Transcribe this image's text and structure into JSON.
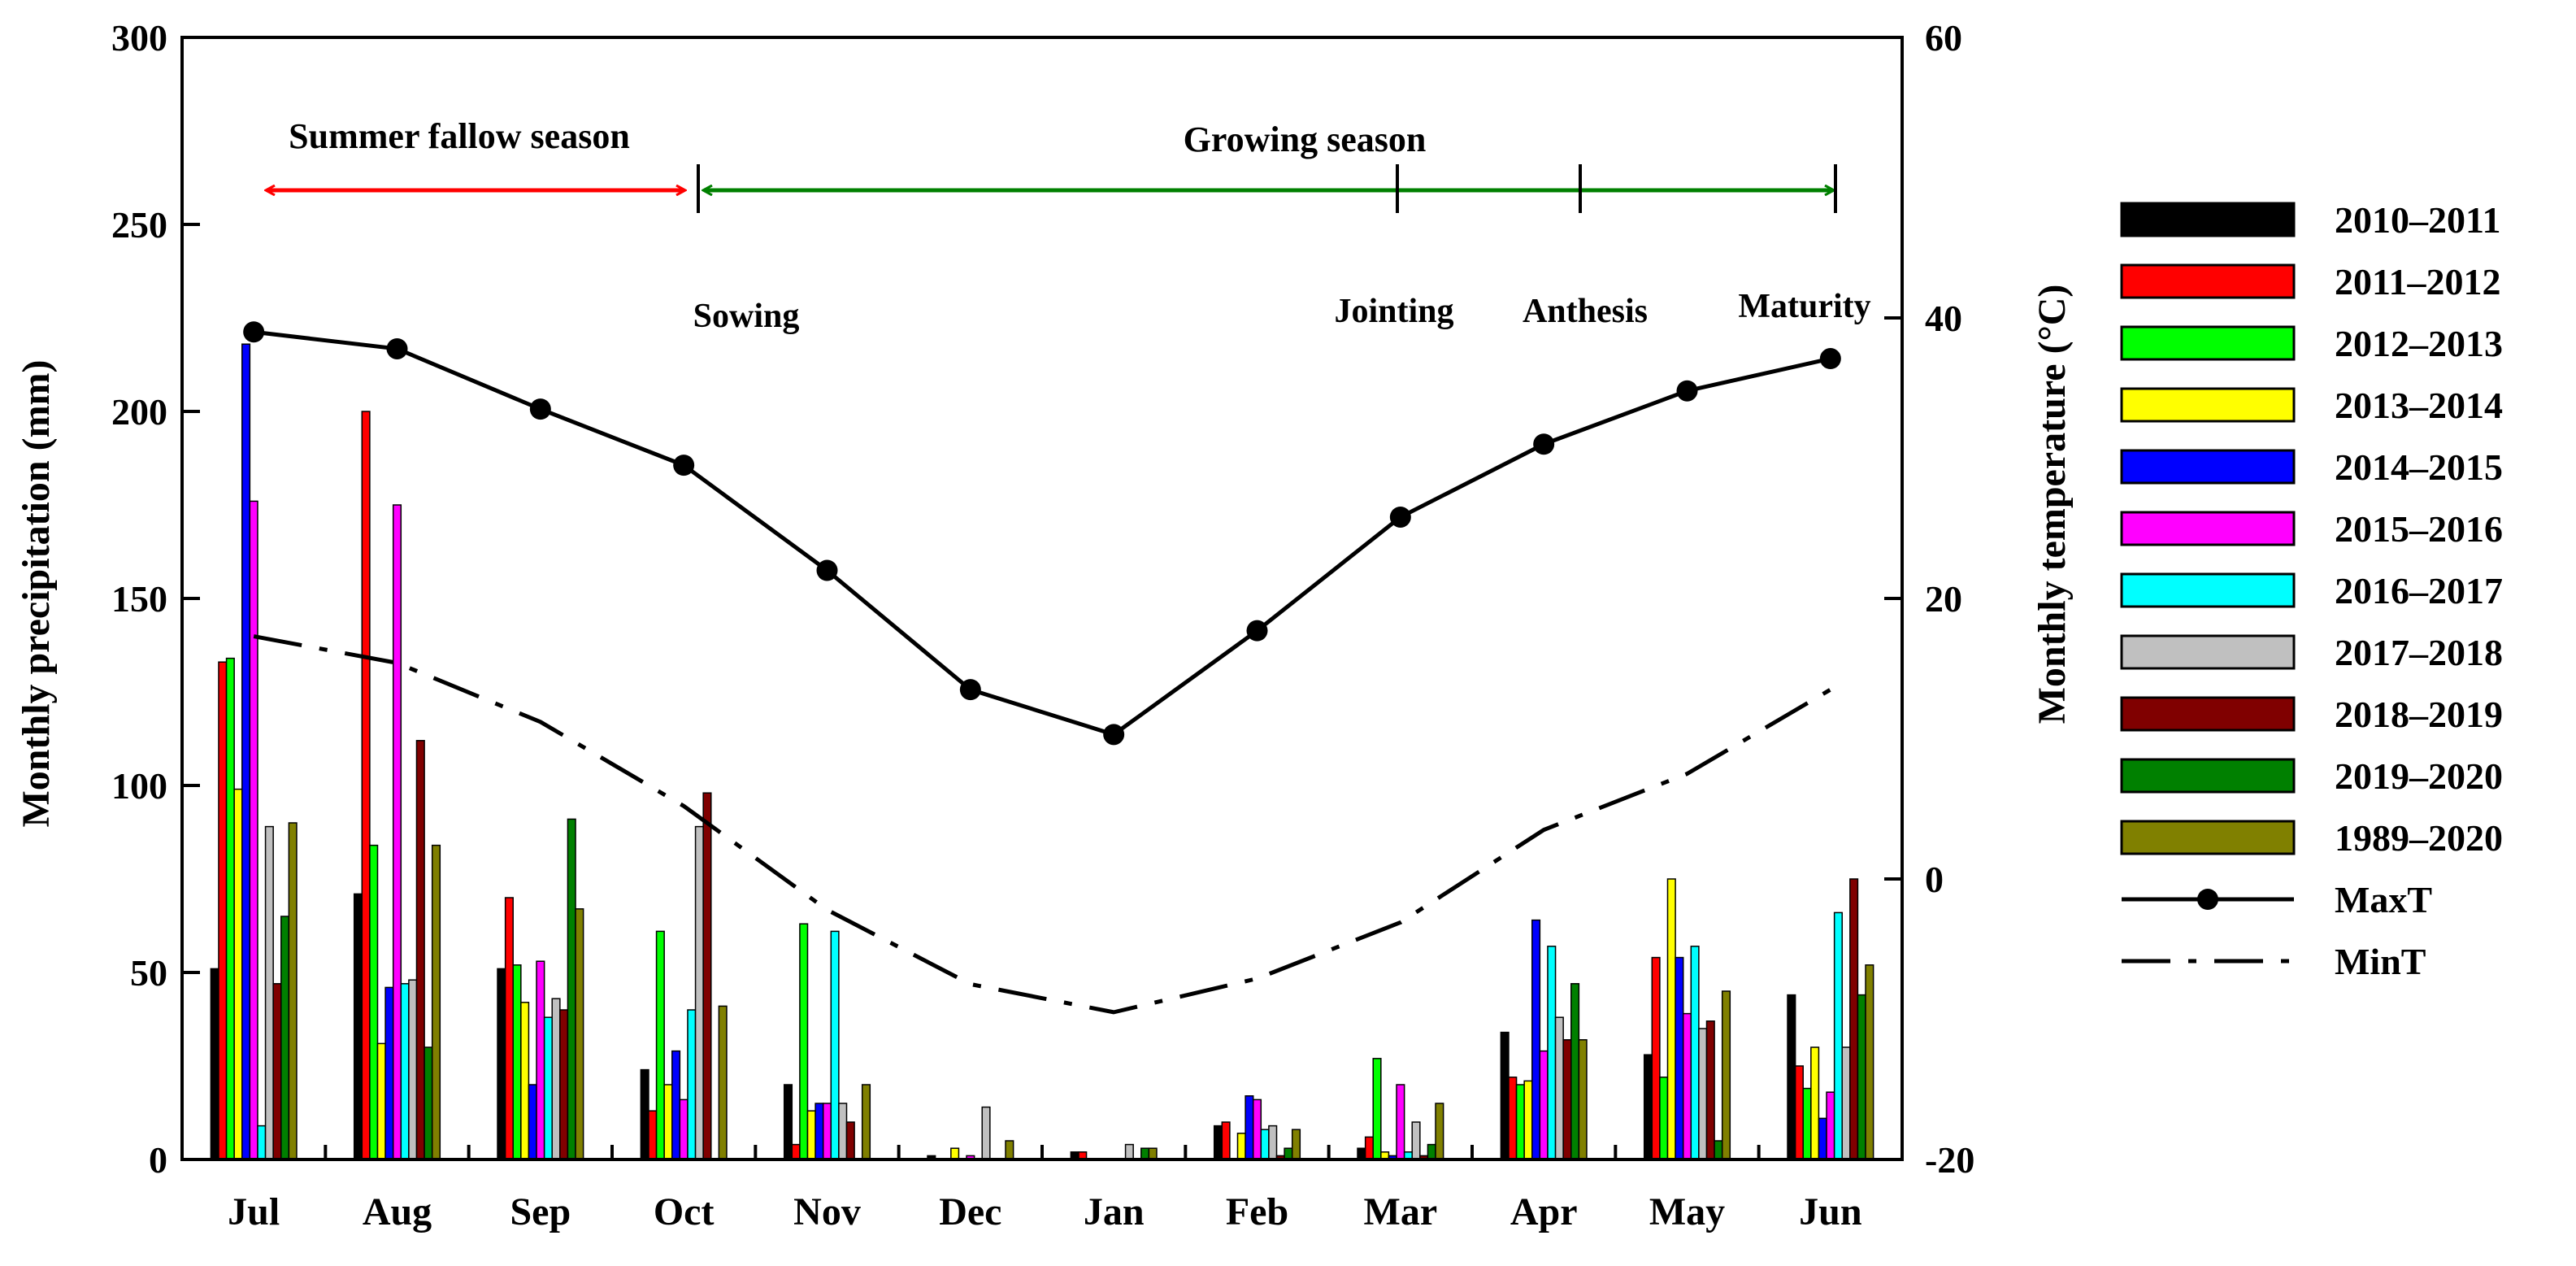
{
  "chart_data": {
    "type": "bar",
    "title": "",
    "categories": [
      "Jul",
      "Aug",
      "Sep",
      "Oct",
      "Nov",
      "Dec",
      "Jan",
      "Feb",
      "Mar",
      "Apr",
      "May",
      "Jun"
    ],
    "ylabel": "Monthly precipitation (mm)",
    "ylim": [
      0,
      300
    ],
    "yticks": [
      0,
      50,
      100,
      150,
      200,
      250,
      300
    ],
    "y2label": "Monthly temperature (°C)",
    "y2lim": [
      -20,
      60
    ],
    "y2ticks": [
      -20,
      0,
      20,
      40,
      60
    ],
    "series": [
      {
        "name": "2010–2011",
        "color": "#000000",
        "values": [
          51,
          71,
          51,
          24,
          20,
          1,
          2,
          9,
          3,
          34,
          28,
          44
        ]
      },
      {
        "name": "2011–2012",
        "color": "#ff0000",
        "values": [
          133,
          200,
          70,
          13,
          4,
          0,
          2,
          10,
          6,
          22,
          54,
          25
        ]
      },
      {
        "name": "2012–2013",
        "color": "#00ff00",
        "values": [
          134,
          84,
          52,
          61,
          63,
          0,
          0,
          0,
          27,
          20,
          22,
          19
        ]
      },
      {
        "name": "2013–2014",
        "color": "#ffff00",
        "values": [
          99,
          31,
          42,
          20,
          13,
          3,
          0,
          7,
          2,
          21,
          75,
          30
        ]
      },
      {
        "name": "2014–2015",
        "color": "#0000ff",
        "values": [
          218,
          46,
          20,
          29,
          15,
          0,
          0,
          17,
          1,
          64,
          54,
          11
        ]
      },
      {
        "name": "2015–2016",
        "color": "#ff00ff",
        "values": [
          176,
          175,
          53,
          16,
          15,
          1,
          0,
          16,
          20,
          29,
          39,
          18
        ]
      },
      {
        "name": "2016–2017",
        "color": "#00ffff",
        "values": [
          9,
          47,
          38,
          40,
          61,
          0,
          0,
          8,
          2,
          57,
          57,
          66
        ]
      },
      {
        "name": "2017–2018",
        "color": "#c0c0c0",
        "values": [
          89,
          48,
          43,
          89,
          15,
          14,
          4,
          9,
          10,
          38,
          35,
          30
        ]
      },
      {
        "name": "2018–2019",
        "color": "#800000",
        "values": [
          47,
          112,
          40,
          98,
          10,
          0,
          0,
          1,
          1,
          32,
          37,
          75
        ]
      },
      {
        "name": "2019–2020",
        "color": "#008000",
        "values": [
          65,
          30,
          91,
          0,
          0,
          0,
          3,
          3,
          4,
          47,
          5,
          44
        ]
      },
      {
        "name": "1989–2020",
        "color": "#808000",
        "values": [
          90,
          84,
          67,
          41,
          20,
          5,
          3,
          8,
          15,
          32,
          45,
          52
        ]
      }
    ],
    "lines": [
      {
        "name": "MaxT",
        "style": "solid-marker",
        "axis": "right",
        "values": [
          39,
          37.8,
          33.5,
          29.5,
          22,
          13.5,
          10.3,
          17.7,
          25.8,
          31,
          34.8,
          37.1
        ]
      },
      {
        "name": "MinT",
        "style": "dash-dot",
        "axis": "right",
        "values": [
          17.3,
          15.4,
          11.2,
          5.2,
          -2.2,
          -7.5,
          -9.5,
          -7.1,
          -3.1,
          3.5,
          7.5,
          13.5
        ]
      }
    ],
    "annotations": {
      "summer_season": "Summer fallow season",
      "growing_season": "Growing season",
      "stages": [
        "Sowing",
        "Jointing",
        "Anthesis",
        "Maturity"
      ],
      "summer_arrow_color": "#ff0000",
      "growing_arrow_color": "#008000"
    }
  }
}
